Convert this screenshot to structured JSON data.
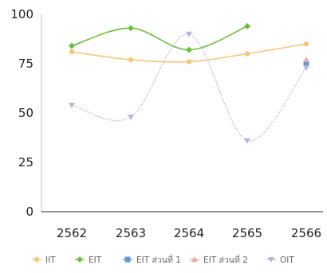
{
  "chart_data": {
    "type": "line",
    "title": "",
    "xlabel": "",
    "ylabel": "",
    "categories": [
      "2562",
      "2563",
      "2564",
      "2565",
      "2566"
    ],
    "ylim": [
      0,
      100
    ],
    "yticks": [
      0,
      25,
      50,
      75,
      100
    ],
    "grid": false,
    "legend_position": "bottom",
    "series": [
      {
        "name": "IIT",
        "color": "#f5c77e",
        "marker": "circle",
        "values": [
          81,
          77,
          76,
          80,
          85
        ]
      },
      {
        "name": "EIT",
        "color": "#6bbf3a",
        "marker": "diamond",
        "values": [
          84,
          93,
          82,
          94,
          null
        ]
      },
      {
        "name": "EIT ส่วนที่ 1",
        "color": "#5b9bd5",
        "marker": "square",
        "values": [
          null,
          null,
          null,
          null,
          75
        ]
      },
      {
        "name": "EIT ส่วนที่ 2",
        "color": "#f4a6a6",
        "marker": "triangle",
        "values": [
          null,
          null,
          null,
          null,
          77
        ]
      },
      {
        "name": "OIT",
        "color": "#b9b3d6",
        "marker": "triangle-down",
        "values": [
          54,
          48,
          90,
          36,
          73
        ]
      }
    ]
  }
}
